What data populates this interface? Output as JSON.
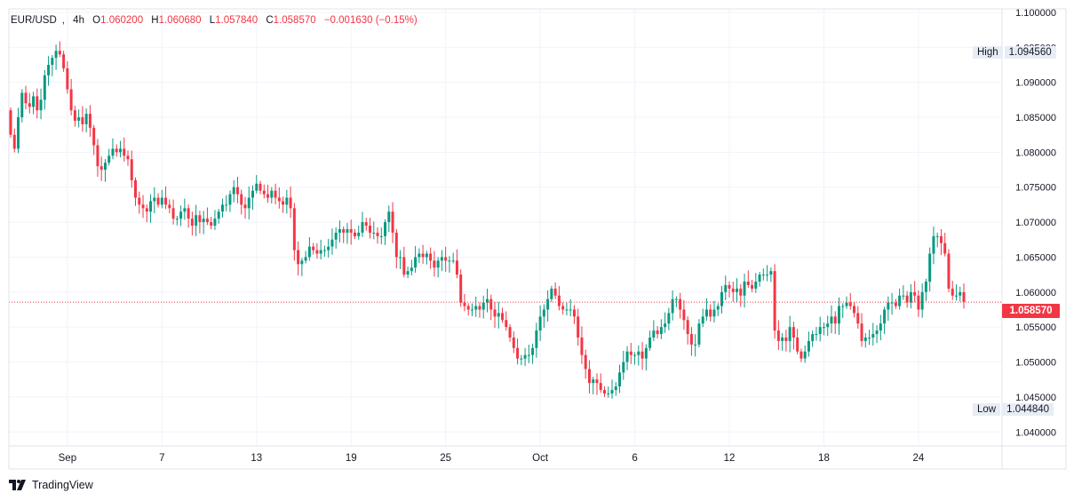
{
  "header": {
    "symbol": "EUR/USD",
    "timeframe": "4h",
    "open_label": "O",
    "open": "1.060200",
    "high_label": "H",
    "high": "1.060680",
    "low_label": "L",
    "low": "1.057840",
    "close_label": "C",
    "close": "1.058570",
    "change": "−0.001630 (−0.15%)"
  },
  "markers": {
    "high_label": "High",
    "high_value": "1.094560",
    "low_label": "Low",
    "low_value": "1.044840",
    "last_price": "1.058570"
  },
  "branding": {
    "name": "TradingView"
  },
  "colors": {
    "up": "#089981",
    "down": "#f23645",
    "grid": "#f0f3fa",
    "axis_text": "#131722",
    "price_line": "#f23645",
    "tag_bg": "#e8ecf4"
  },
  "chart_data": {
    "type": "candlestick",
    "title": "",
    "y_axis": {
      "position": "right",
      "ylim": [
        1.038,
        1.1005
      ],
      "ticks": [
        "1.040000",
        "1.045000",
        "1.050000",
        "1.055000",
        "1.060000",
        "1.065000",
        "1.070000",
        "1.075000",
        "1.080000",
        "1.085000",
        "1.090000",
        "1.095000",
        "1.100000"
      ]
    },
    "x_axis": {
      "ticks": [
        "Sep",
        "7",
        "13",
        "19",
        "25",
        "Oct",
        "6",
        "12",
        "18",
        "24"
      ],
      "tick_bar_index": [
        15,
        40,
        65,
        90,
        115,
        140,
        165,
        190,
        215,
        240
      ]
    },
    "grid": true,
    "close_path": [
      1.0825,
      1.0805,
      1.085,
      1.0885,
      1.087,
      1.0865,
      1.088,
      1.086,
      1.0875,
      1.091,
      1.0925,
      1.0935,
      1.0945,
      1.094,
      1.092,
      1.089,
      1.086,
      1.0845,
      1.085,
      1.084,
      1.0855,
      1.0835,
      1.081,
      1.078,
      1.0775,
      1.0785,
      1.0795,
      1.0805,
      1.08,
      1.0805,
      1.0795,
      1.079,
      1.076,
      1.0735,
      1.0725,
      1.072,
      1.0715,
      1.073,
      1.0735,
      1.0725,
      1.0735,
      1.0725,
      1.072,
      1.0705,
      1.0705,
      1.0715,
      1.072,
      1.0705,
      1.0695,
      1.071,
      1.07,
      1.0705,
      1.07,
      1.0695,
      1.0705,
      1.0715,
      1.0725,
      1.0725,
      1.074,
      1.075,
      1.074,
      1.0725,
      1.072,
      1.0735,
      1.0745,
      1.0755,
      1.0745,
      1.074,
      1.0735,
      1.0745,
      1.0735,
      1.073,
      1.0725,
      1.0735,
      1.072,
      1.066,
      1.064,
      1.0645,
      1.065,
      1.0665,
      1.066,
      1.0655,
      1.066,
      1.066,
      1.0665,
      1.0675,
      1.0685,
      1.069,
      1.0685,
      1.069,
      1.0685,
      1.068,
      1.0685,
      1.07,
      1.0695,
      1.0685,
      1.0685,
      1.068,
      1.068,
      1.07,
      1.0715,
      1.0685,
      1.065,
      1.065,
      1.0625,
      1.063,
      1.0635,
      1.065,
      1.0655,
      1.065,
      1.0655,
      1.0645,
      1.0635,
      1.0645,
      1.065,
      1.0645,
      1.0645,
      1.0645,
      1.0625,
      1.0585,
      1.058,
      1.0575,
      1.0575,
      1.058,
      1.0575,
      1.0585,
      1.059,
      1.0575,
      1.0565,
      1.057,
      1.056,
      1.055,
      1.0535,
      1.052,
      1.0505,
      1.0505,
      1.051,
      1.051,
      1.052,
      1.0545,
      1.0565,
      1.0575,
      1.059,
      1.0605,
      1.0595,
      1.058,
      1.0575,
      1.0575,
      1.0575,
      1.0565,
      1.0535,
      1.051,
      1.049,
      1.047,
      1.0475,
      1.047,
      1.046,
      1.0455,
      1.0455,
      1.046,
      1.0465,
      1.0485,
      1.05,
      1.0515,
      1.051,
      1.051,
      1.0515,
      1.0505,
      1.052,
      1.0535,
      1.0545,
      1.054,
      1.055,
      1.0555,
      1.057,
      1.059,
      1.059,
      1.0575,
      1.056,
      1.054,
      1.0525,
      1.0525,
      1.0555,
      1.0565,
      1.0575,
      1.0565,
      1.0575,
      1.058,
      1.06,
      1.061,
      1.0605,
      1.06,
      1.0605,
      1.0595,
      1.0615,
      1.061,
      1.0605,
      1.0615,
      1.0625,
      1.0625,
      1.0625,
      1.063,
      1.0545,
      1.053,
      1.0535,
      1.053,
      1.055,
      1.0535,
      1.0515,
      1.0505,
      1.0515,
      1.053,
      1.054,
      1.054,
      1.055,
      1.055,
      1.0555,
      1.0565,
      1.0555,
      1.058,
      1.058,
      1.0585,
      1.058,
      1.057,
      1.0555,
      1.053,
      1.0535,
      1.0535,
      1.054,
      1.0545,
      1.0555,
      1.0575,
      1.0585,
      1.0585,
      1.058,
      1.0595,
      1.0595,
      1.0585,
      1.06,
      1.0595,
      1.0575,
      1.06,
      1.0615,
      1.0655,
      1.068,
      1.068,
      1.067,
      1.0655,
      1.0605,
      1.0595,
      1.0595,
      1.06,
      1.0586
    ]
  }
}
